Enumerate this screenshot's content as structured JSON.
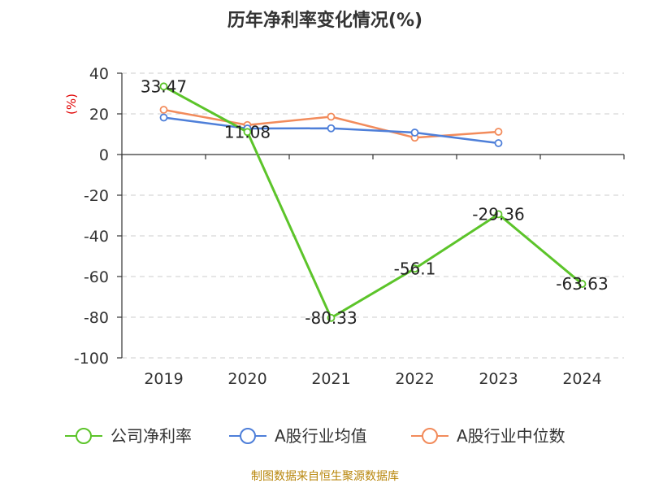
{
  "chart_data": {
    "type": "line",
    "title": "历年净利率变化情况(%)",
    "y_unit": "(%)",
    "categories": [
      "2019",
      "2020",
      "2021",
      "2022",
      "2023",
      "2024"
    ],
    "ylim": [
      -100,
      40
    ],
    "yticks": [
      40,
      20,
      0,
      -20,
      -40,
      -60,
      -80,
      -100
    ],
    "grid": true,
    "legend_position": "bottom",
    "series": [
      {
        "name": "公司净利率",
        "color": "#5cc42a",
        "values": [
          33.47,
          11.08,
          -80.33,
          -56.1,
          -29.36,
          -63.63
        ],
        "labels": [
          "33.47",
          "11.08",
          "-80.33",
          "-56.1",
          "-29.36",
          "-63.63"
        ]
      },
      {
        "name": "A股行业均值",
        "color": "#4e7fd9",
        "values": [
          18.2,
          12.8,
          12.9,
          10.8,
          5.6,
          null
        ]
      },
      {
        "name": "A股行业中位数",
        "color": "#f28b5b",
        "values": [
          22.0,
          14.5,
          18.6,
          8.3,
          11.2,
          null
        ]
      }
    ],
    "source": "制图数据来自恒生聚源数据库"
  }
}
